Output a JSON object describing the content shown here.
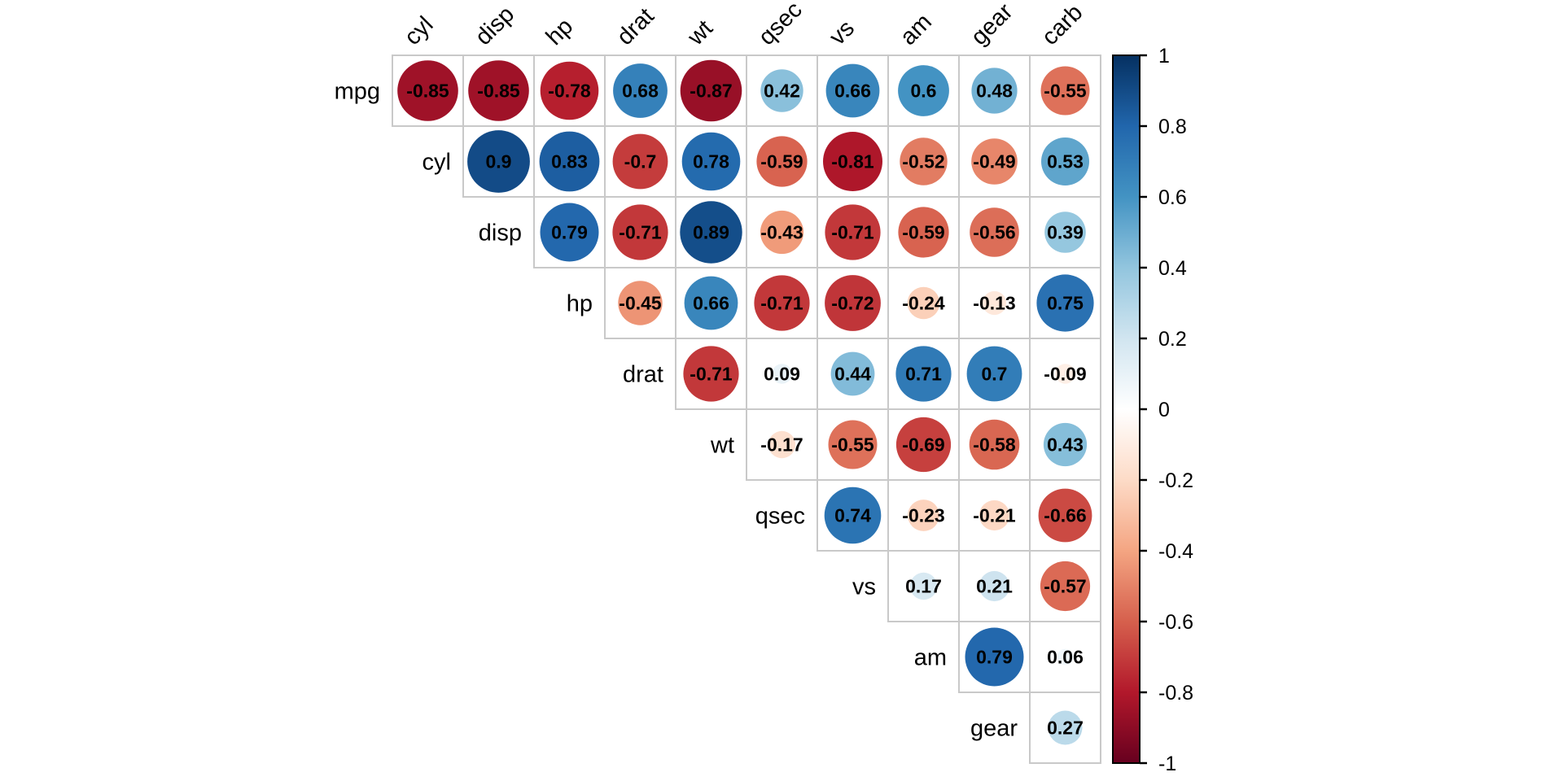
{
  "figure": {
    "background": "#ffffff",
    "grid_color": "#c9c9c9",
    "label_color": "#000000",
    "value_text_color": "#000000",
    "colorbar_border_color": "#000000"
  },
  "chart_data": {
    "type": "heatmap",
    "subtype": "correlation-matrix-upper-triangle",
    "dataset_hint": "mtcars correlations",
    "row_labels": [
      "mpg",
      "cyl",
      "disp",
      "hp",
      "drat",
      "wt",
      "qsec",
      "vs",
      "am",
      "gear"
    ],
    "col_labels": [
      "cyl",
      "disp",
      "hp",
      "drat",
      "wt",
      "qsec",
      "vs",
      "am",
      "gear",
      "carb"
    ],
    "matrix": [
      [
        -0.85,
        -0.85,
        -0.78,
        0.68,
        -0.87,
        0.42,
        0.66,
        0.6,
        0.48,
        -0.55
      ],
      [
        null,
        0.9,
        0.83,
        -0.7,
        0.78,
        -0.59,
        -0.81,
        -0.52,
        -0.49,
        0.53
      ],
      [
        null,
        null,
        0.79,
        -0.71,
        0.89,
        -0.43,
        -0.71,
        -0.59,
        -0.56,
        0.39
      ],
      [
        null,
        null,
        null,
        -0.45,
        0.66,
        -0.71,
        -0.72,
        -0.24,
        -0.13,
        0.75
      ],
      [
        null,
        null,
        null,
        null,
        -0.71,
        0.09,
        0.44,
        0.71,
        0.7,
        -0.09
      ],
      [
        null,
        null,
        null,
        null,
        null,
        -0.17,
        -0.55,
        -0.69,
        -0.58,
        0.43
      ],
      [
        null,
        null,
        null,
        null,
        null,
        null,
        0.74,
        -0.23,
        -0.21,
        -0.66
      ],
      [
        null,
        null,
        null,
        null,
        null,
        null,
        null,
        0.17,
        0.21,
        -0.57
      ],
      [
        null,
        null,
        null,
        null,
        null,
        null,
        null,
        null,
        0.79,
        0.06
      ],
      [
        null,
        null,
        null,
        null,
        null,
        null,
        null,
        null,
        null,
        0.27
      ]
    ],
    "value_range": [
      -1,
      1
    ],
    "circle_size_rule": "area proportional to |correlation|",
    "grid": "light gray cell borders, staircase upper triangle",
    "legend_position": "right",
    "colorbar": {
      "orientation": "vertical",
      "min": -1,
      "max": 1,
      "ticks": [
        1,
        0.8,
        0.6,
        0.4,
        0.2,
        0,
        -0.2,
        -0.4,
        -0.6,
        -0.8,
        -1
      ],
      "tick_labels": [
        "1",
        "0.8",
        "0.6",
        "0.4",
        "0.2",
        "0",
        "-0.2",
        "-0.4",
        "-0.6",
        "-0.8",
        "-1"
      ]
    },
    "palette": {
      "name": "RdBu-reversed (blue = positive)",
      "stops": [
        {
          "value": -1.0,
          "color": "#67001F"
        },
        {
          "value": -0.8,
          "color": "#B2182B"
        },
        {
          "value": -0.6,
          "color": "#D6604D"
        },
        {
          "value": -0.4,
          "color": "#F4A582"
        },
        {
          "value": -0.2,
          "color": "#FDDBC7"
        },
        {
          "value": 0.0,
          "color": "#FFFFFF"
        },
        {
          "value": 0.2,
          "color": "#D1E5F0"
        },
        {
          "value": 0.4,
          "color": "#92C5DE"
        },
        {
          "value": 0.6,
          "color": "#4393C3"
        },
        {
          "value": 0.8,
          "color": "#2166AC"
        },
        {
          "value": 1.0,
          "color": "#053061"
        }
      ]
    }
  }
}
